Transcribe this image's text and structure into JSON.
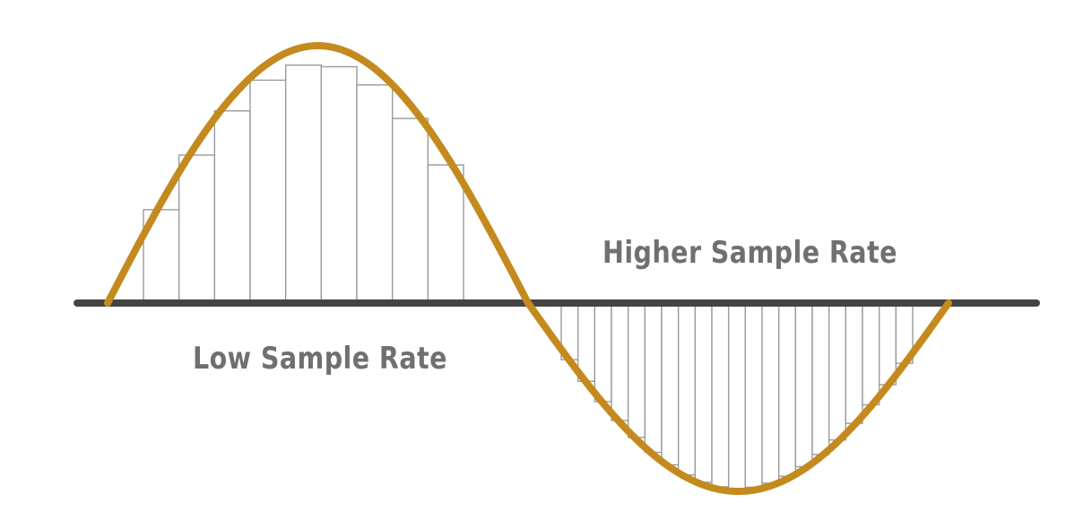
{
  "labels": {
    "low_rate": "Low Sample Rate",
    "high_rate": "Higher Sample Rate"
  },
  "samples": {
    "low_rate_count": 9,
    "high_rate_count": 21
  },
  "colors": {
    "wave": "#c48a1e",
    "axis": "#444444",
    "sample_bar_stroke": "#9a9a9a",
    "label_text": "#707070",
    "background": "#ffffff"
  }
}
